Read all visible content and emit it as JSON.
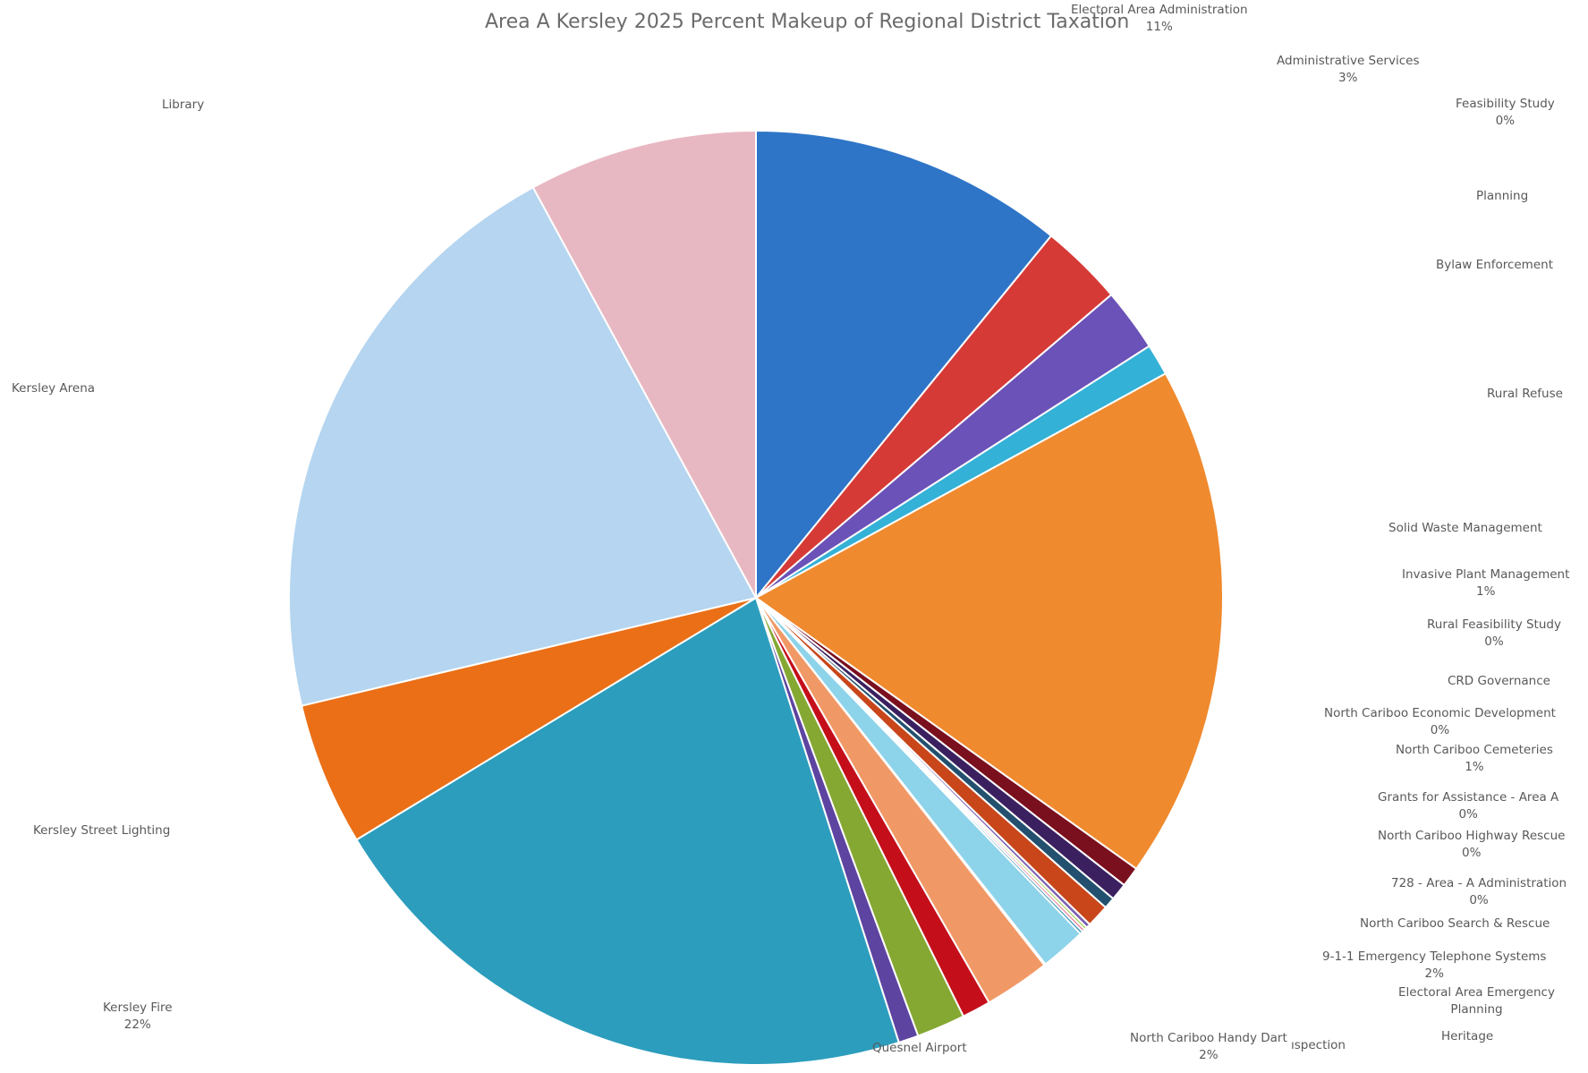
{
  "chart_data": {
    "type": "pie",
    "title": "Area A Kersley 2025 Percent Makeup of Regional District Taxation",
    "start_angle_deg": 0,
    "direction": "clockwise",
    "slices": [
      {
        "name": "Electoral Area Administration",
        "label": "Electoral Area Administration",
        "pct_label": "11%",
        "value": 11.0,
        "color": "#2e75c8"
      },
      {
        "name": "Administrative Services",
        "label": "Administrative Services",
        "pct_label": "3%",
        "value": 2.9,
        "color": "#d63a37"
      },
      {
        "name": "Feasibility Study",
        "label": "Feasibility Study",
        "pct_label": "0%",
        "value": 0.0,
        "color": "#a9a9a9"
      },
      {
        "name": "Planning",
        "label": "Planning",
        "pct_label": "",
        "value": 2.2,
        "color": "#6a52b8"
      },
      {
        "name": "Bylaw Enforcement",
        "label": "Bylaw Enforcement",
        "pct_label": "",
        "value": 1.1,
        "color": "#33b1d6"
      },
      {
        "name": "Rural Refuse",
        "label": "Rural Refuse",
        "pct_label": "",
        "value": 18.0,
        "color": "#f08a2e"
      },
      {
        "name": "Solid Waste Management",
        "label": "Solid Waste Management",
        "pct_label": "",
        "value": 0.7,
        "color": "#7a0f1e"
      },
      {
        "name": "Invasive Plant Management",
        "label": "Invasive Plant Management",
        "pct_label": "1%",
        "value": 0.6,
        "color": "#3b2060"
      },
      {
        "name": "Rural Feasibility Study",
        "label": "Rural Feasibility Study",
        "pct_label": "0%",
        "value": 0.0,
        "color": "#a9a9a9"
      },
      {
        "name": "CRD Governance",
        "label": "CRD Governance",
        "pct_label": "",
        "value": 0.4,
        "color": "#23506e"
      },
      {
        "name": "North Cariboo Economic Development",
        "label": "North Cariboo Economic Development",
        "pct_label": "0%",
        "value": 0.0,
        "color": "#b5b5b5"
      },
      {
        "name": "North Cariboo Cemeteries",
        "label": "North Cariboo Cemeteries",
        "pct_label": "1%",
        "value": 0.8,
        "color": "#c8461a"
      },
      {
        "name": "Grants for Assistance - Area A",
        "label": "Grants for Assistance - Area A",
        "pct_label": "0%",
        "value": 0.15,
        "color": "#7c5fb0"
      },
      {
        "name": "North Cariboo Highway Rescue",
        "label": "North Cariboo Highway Rescue",
        "pct_label": "0%",
        "value": 0.1,
        "color": "#9ccc46"
      },
      {
        "name": "728 - Area - A Administration",
        "label": "728 - Area - A Administration",
        "pct_label": "0%",
        "value": 0.1,
        "color": "#e86c8c"
      },
      {
        "name": "North Cariboo Search & Rescue",
        "label": "North Cariboo Search & Rescue",
        "pct_label": "",
        "value": 0.1,
        "color": "#1d8ab0"
      },
      {
        "name": "9-1-1 Emergency Telephone Systems",
        "label": "9-1-1 Emergency Telephone Systems",
        "pct_label": "2%",
        "value": 1.6,
        "color": "#8dd3ea"
      },
      {
        "name": "Electoral Area Emergency Planning",
        "label": "Electoral Area Emergency Planning",
        "pct_label": "",
        "value": 0.05,
        "color": "#6b4aa0"
      },
      {
        "name": "Heritage",
        "label": "Heritage",
        "pct_label": "",
        "value": 2.3,
        "color": "#f19966"
      },
      {
        "name": "Inspection",
        "label": "ıspection",
        "pct_label": "",
        "value": 1.0,
        "color": "#c40f1b"
      },
      {
        "name": "North Cariboo Handy Dart",
        "label": "North Cariboo Handy Dart",
        "pct_label": "2%",
        "value": 1.7,
        "color": "#85a832"
      },
      {
        "name": "Quesnel Airport",
        "label": "Quesnel Airport",
        "pct_label": "",
        "value": 0.7,
        "color": "#5d44a0"
      },
      {
        "name": "Kersley Fire",
        "label": "Kersley Fire",
        "pct_label": "22%",
        "value": 21.5,
        "color": "#2c9dbd"
      },
      {
        "name": "Kersley Street Lighting",
        "label": "Kersley Street Lighting",
        "pct_label": "",
        "value": 5.0,
        "color": "#ea6f16"
      },
      {
        "name": "Kersley Arena",
        "label": "Kersley Arena",
        "pct_label": "",
        "value": 21.0,
        "color": "#b5d5f0"
      },
      {
        "name": "Library",
        "label": "Library",
        "pct_label": "",
        "value": 8.0,
        "color": "#e8b8c2"
      }
    ]
  }
}
